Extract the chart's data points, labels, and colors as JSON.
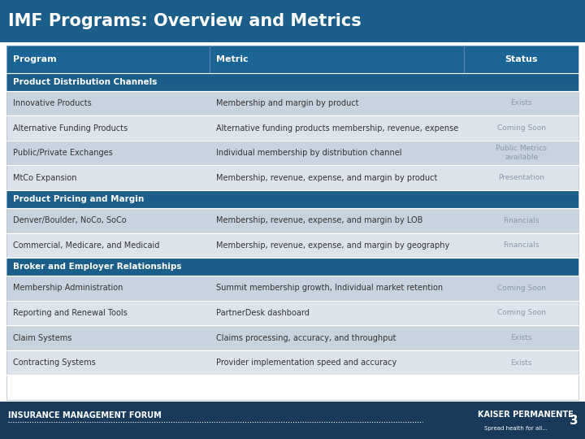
{
  "title": "IMF Programs: Overview and Metrics",
  "title_bg": "#1b5e8a",
  "title_color": "#ffffff",
  "header_cols": [
    "Program",
    "Metric",
    "Status"
  ],
  "header_bg": "#1b6496",
  "header_color": "#ffffff",
  "section_bg": "#1b5e8a",
  "section_color": "#ffffff",
  "row_bg_odd": "#c8d3e0",
  "row_bg_even": "#dde3eb",
  "row_text_color": "#333333",
  "status_color": "#8899aa",
  "sections": [
    {
      "name": "Product Distribution Channels",
      "rows": [
        [
          "Innovative Products",
          "Membership and margin by product",
          "Exists"
        ],
        [
          "Alternative Funding Products",
          "Alternative funding products membership, revenue, expense",
          "Coming Soon"
        ],
        [
          "Public/Private Exchanges",
          "Individual membership by distribution channel",
          "Public Metrics\navailable"
        ],
        [
          "MtCo Expansion",
          "Membership, revenue, expense, and margin by product",
          "Presentation"
        ]
      ]
    },
    {
      "name": "Product Pricing and Margin",
      "rows": [
        [
          "Denver/Boulder, NoCo, SoCo",
          "Membership, revenue, expense, and margin by LOB",
          "Financials"
        ],
        [
          "Commercial, Medicare, and Medicaid",
          "Membership, revenue, expense, and margin by geography",
          "Financials"
        ]
      ]
    },
    {
      "name": "Broker and Employer Relationships",
      "rows": [
        [
          "Membership Administration",
          "Summit membership growth, Individual market retention",
          "Coming Soon"
        ],
        [
          "Reporting and Renewal Tools",
          "PartnerDesk dashboard",
          "Coming Soon"
        ],
        [
          "Claim Systems",
          "Claims processing, accuracy, and throughput",
          "Exists"
        ],
        [
          "Contracting Systems",
          "Provider implementation speed and accuracy",
          "Exists"
        ]
      ]
    }
  ],
  "footer_bg": "#1a3a5c",
  "footer_text_left": "INSURANCE MANAGEMENT FORUM",
  "footer_text_right": "KAISER PERMANENTE.",
  "footer_sub_right": "Spread health for all...",
  "page_num": "3"
}
